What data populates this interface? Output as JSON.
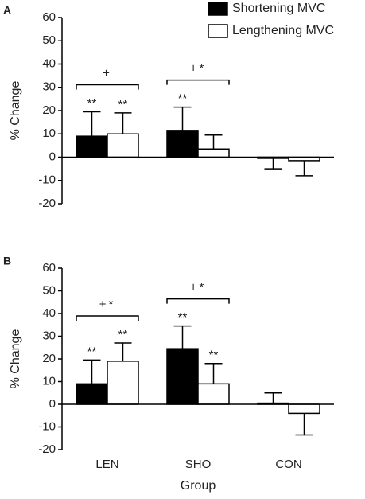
{
  "chart_data": [
    {
      "type": "bar",
      "panel_label": "A",
      "y_label": "% Change",
      "categories": [
        null,
        null,
        null
      ],
      "series": [
        {
          "name": "Shortening MVC",
          "color": "#000000",
          "values": [
            9,
            11.5,
            -0.5
          ],
          "errors": [
            10.5,
            10,
            4.5
          ]
        },
        {
          "name": "Lengthening MVC",
          "color": "#ffffff",
          "values": [
            10,
            3.5,
            -1.5
          ],
          "errors": [
            9,
            6,
            6.5
          ]
        }
      ],
      "annotations": [
        {
          "text": "**",
          "series": 0,
          "category": 0
        },
        {
          "text": "**",
          "series": 1,
          "category": 0
        },
        {
          "text": "**",
          "series": 0,
          "category": 1
        }
      ],
      "brackets": [
        {
          "text": "+",
          "category": 0
        },
        {
          "text": "+*",
          "category": 1
        }
      ],
      "ylim": [
        -20,
        60
      ],
      "yticks": [
        -20,
        -10,
        0,
        10,
        20,
        30,
        40,
        50,
        60
      ],
      "legend": "top-right"
    },
    {
      "type": "bar",
      "panel_label": "B",
      "y_label": "% Change",
      "x_label": "Group",
      "categories": [
        "LEN",
        "SHO",
        "CON"
      ],
      "series": [
        {
          "color": "#000000",
          "values": [
            9,
            24.5,
            0.5
          ],
          "errors": [
            10.5,
            10,
            4.5
          ]
        },
        {
          "color": "#ffffff",
          "values": [
            19,
            9,
            -4
          ],
          "errors": [
            8,
            9,
            9.5
          ]
        }
      ],
      "annotations": [
        {
          "text": "**",
          "series": 0,
          "category": 0
        },
        {
          "text": "**",
          "series": 1,
          "category": 0
        },
        {
          "text": "**",
          "series": 0,
          "category": 1
        },
        {
          "text": "**",
          "series": 1,
          "category": 1
        }
      ],
      "brackets": [
        {
          "text": "+*",
          "category": 0
        },
        {
          "text": "+*",
          "category": 1
        }
      ],
      "ylim": [
        -20,
        60
      ],
      "yticks": [
        -20,
        -10,
        0,
        10,
        20,
        30,
        40,
        50,
        60
      ]
    }
  ]
}
